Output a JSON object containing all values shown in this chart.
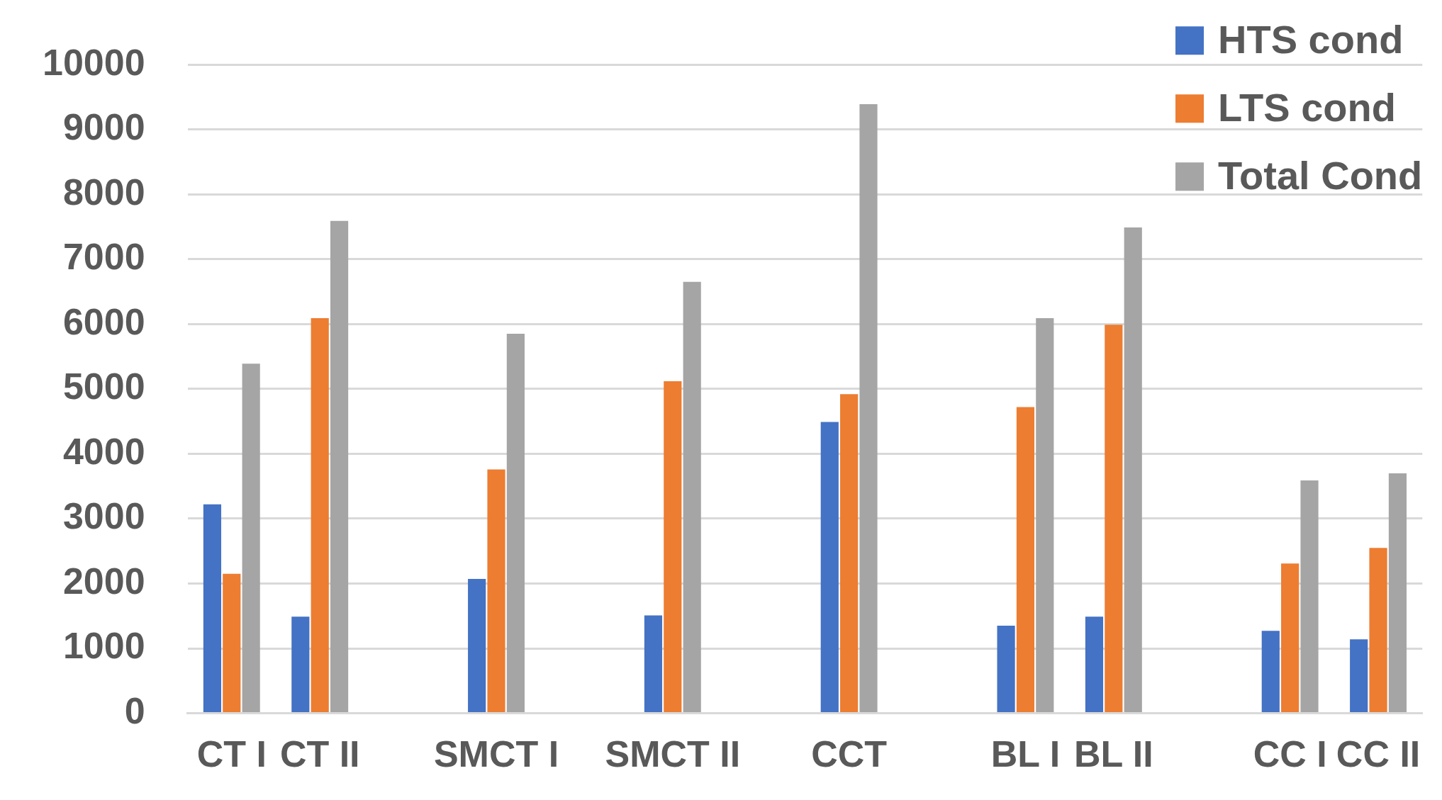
{
  "chart_data": {
    "type": "bar",
    "categories": [
      "CT I",
      "CT II",
      null,
      "SMCT I",
      null,
      "SMCT II",
      null,
      "CCT",
      null,
      "BL I",
      "BL II",
      null,
      "CC I",
      "CC II"
    ],
    "series": [
      {
        "name": "HTS cond",
        "color": "#4472c4",
        "values": [
          3220,
          1490,
          null,
          2070,
          null,
          1510,
          null,
          4490,
          null,
          1350,
          1490,
          null,
          1270,
          1140
        ]
      },
      {
        "name": "LTS cond",
        "color": "#ed7d31",
        "values": [
          2150,
          6090,
          null,
          3760,
          null,
          5120,
          null,
          4920,
          null,
          4720,
          5990,
          null,
          2310,
          2550
        ]
      },
      {
        "name": "Total Cond",
        "color": "#a5a5a5",
        "values": [
          5390,
          7590,
          null,
          5850,
          null,
          6650,
          null,
          9390,
          null,
          6090,
          7490,
          null,
          3590,
          3700
        ]
      }
    ],
    "ylim": [
      0,
      10000
    ],
    "yticks": [
      0,
      1000,
      2000,
      3000,
      4000,
      5000,
      6000,
      7000,
      8000,
      9000,
      10000
    ],
    "grid": "y",
    "legend": "top right"
  }
}
